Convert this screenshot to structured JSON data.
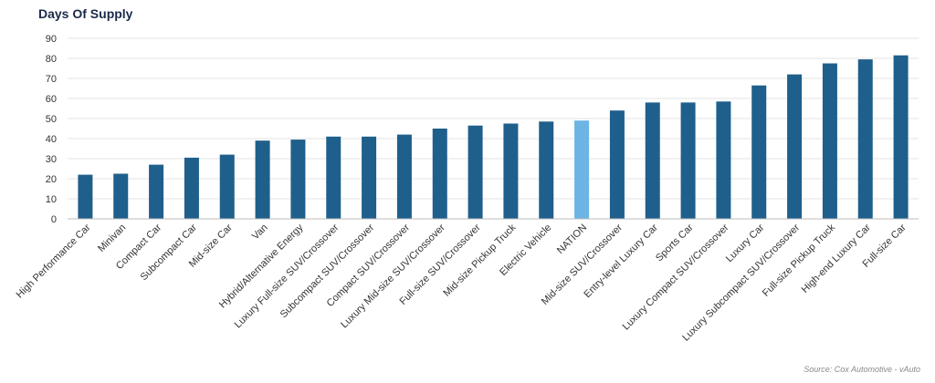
{
  "title": "Days Of Supply",
  "source": "Source: Cox Automotive - vAuto",
  "colors": {
    "bar": "#1f5f8b",
    "highlight": "#6cb4e4",
    "grid": "#e3e3e3",
    "axis": "#bdbdbd"
  },
  "chart_data": {
    "type": "bar",
    "title": "Days Of Supply",
    "xlabel": "",
    "ylabel": "",
    "ylim": [
      0,
      90
    ],
    "yticks": [
      0,
      10,
      20,
      30,
      40,
      50,
      60,
      70,
      80,
      90
    ],
    "grid": true,
    "legend": "none",
    "highlight_category": "NATION",
    "categories": [
      "High Performance Car",
      "Minivan",
      "Compact Car",
      "Subcompact Car",
      "Mid-size Car",
      "Van",
      "Hybrid/Alternative Energy",
      "Luxury Full-size SUV/Crossover",
      "Subcompact SUV/Crossover",
      "Compact SUV/Crossover",
      "Luxury Mid-size SUV/Crossover",
      "Full-size SUV/Crossover",
      "Mid-size Pickup Truck",
      "Electric Vehicle",
      "NATION",
      "Mid-size SUV/Crossover",
      "Entry-level Luxury Car",
      "Sports Car",
      "Luxury Compact SUV/Crossover",
      "Luxury Car",
      "Luxury Subcompact SUV/Crossover",
      "Full-size Pickup Truck",
      "High-end Luxury Car",
      "Full-size Car"
    ],
    "values": [
      22,
      22.5,
      27,
      30.5,
      32,
      39,
      39.5,
      41,
      41,
      42,
      45,
      46.5,
      47.5,
      48.5,
      49,
      54,
      58,
      58,
      58.5,
      66.5,
      72,
      77.5,
      79.5,
      81.5
    ]
  }
}
